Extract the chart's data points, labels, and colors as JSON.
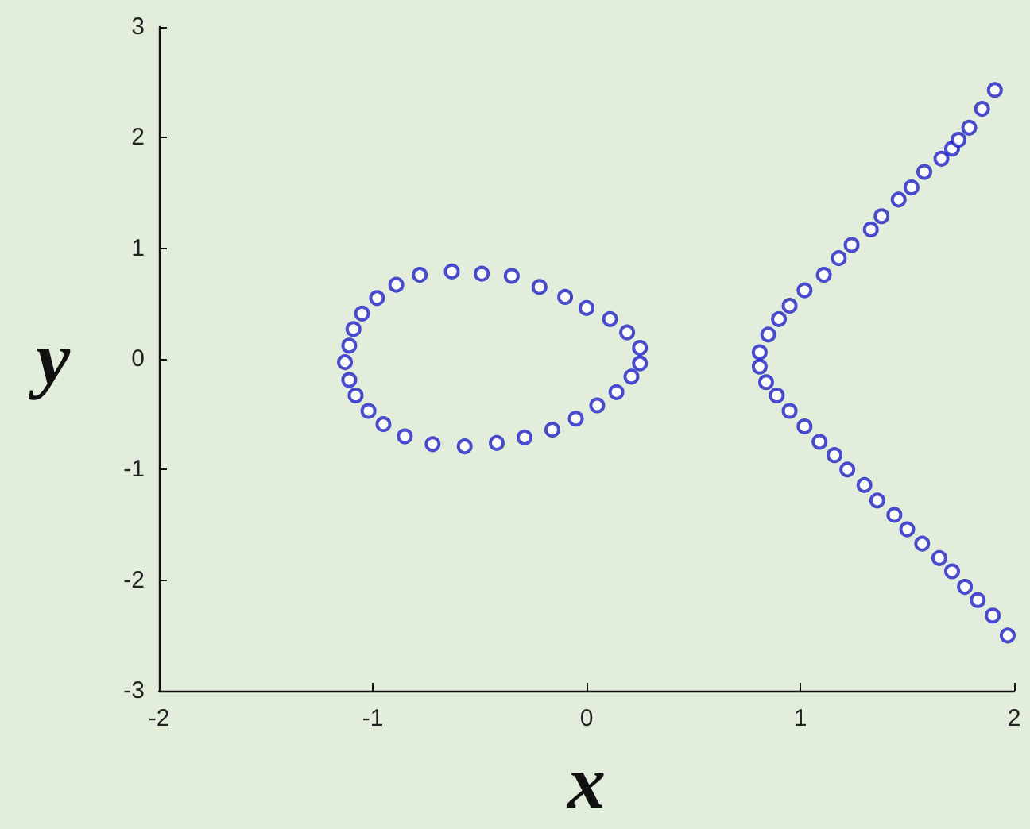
{
  "chart_data": {
    "type": "scatter",
    "xlabel": "x",
    "ylabel": "y",
    "x": [
      -0.78,
      -0.63,
      -0.49,
      -0.35,
      -0.22,
      -0.1,
      0.0,
      0.11,
      0.19,
      0.25,
      0.25,
      0.21,
      0.14,
      0.05,
      -0.05,
      -0.16,
      -0.29,
      -0.42,
      -0.57,
      -0.72,
      -0.85,
      -0.95,
      -1.02,
      -1.08,
      -1.11,
      -1.13,
      -1.11,
      -1.09,
      -1.05,
      -0.98,
      -0.89,
      0.81,
      0.85,
      0.9,
      0.95,
      1.02,
      1.11,
      1.18,
      1.24,
      1.33,
      1.38,
      1.46,
      1.52,
      1.58,
      1.66,
      1.71,
      1.74,
      1.79,
      1.85,
      1.91,
      0.81,
      0.84,
      0.89,
      0.95,
      1.02,
      1.09,
      1.16,
      1.22,
      1.3,
      1.36,
      1.44,
      1.5,
      1.57,
      1.65,
      1.71,
      1.77,
      1.83,
      1.9,
      1.97
    ],
    "values": [
      0.76,
      0.79,
      0.77,
      0.75,
      0.65,
      0.56,
      0.46,
      0.36,
      0.24,
      0.1,
      -0.04,
      -0.16,
      -0.3,
      -0.42,
      -0.54,
      -0.64,
      -0.71,
      -0.76,
      -0.79,
      -0.77,
      -0.7,
      -0.59,
      -0.47,
      -0.33,
      -0.19,
      -0.03,
      0.12,
      0.27,
      0.41,
      0.55,
      0.67,
      0.06,
      0.22,
      0.36,
      0.48,
      0.62,
      0.76,
      0.91,
      1.03,
      1.17,
      1.29,
      1.44,
      1.55,
      1.69,
      1.81,
      1.9,
      1.98,
      2.09,
      2.26,
      2.43,
      -0.07,
      -0.21,
      -0.33,
      -0.47,
      -0.61,
      -0.75,
      -0.87,
      -1.0,
      -1.14,
      -1.28,
      -1.41,
      -1.54,
      -1.67,
      -1.8,
      -1.92,
      -2.06,
      -2.18,
      -2.32,
      -2.5
    ],
    "color": "#1f1fc4",
    "marker": "circle",
    "xlim": [
      -2,
      2
    ],
    "ylim": [
      -3,
      3
    ],
    "xticks": [
      -2,
      -1,
      0,
      1,
      2
    ],
    "yticks": [
      -3,
      -2,
      -1,
      0,
      1,
      2,
      3
    ],
    "grid": false
  }
}
